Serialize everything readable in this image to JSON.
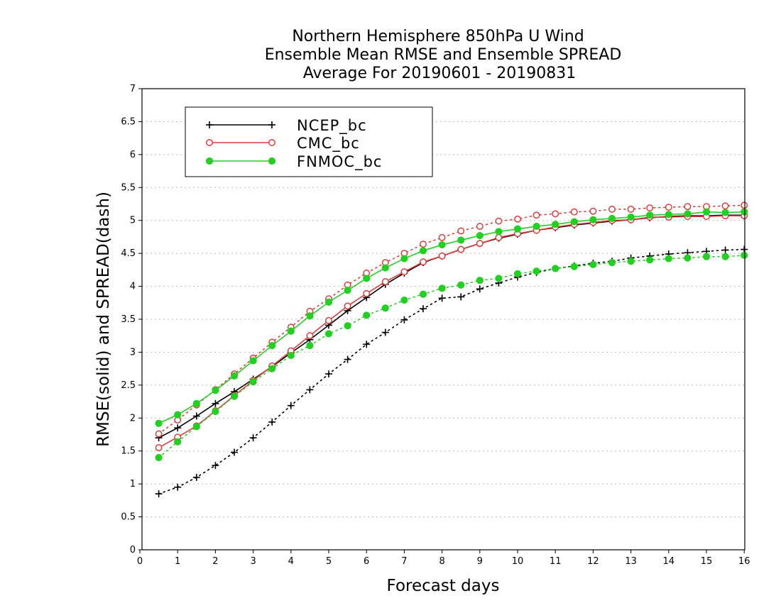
{
  "chart_data": {
    "type": "line",
    "title": [
      "Northern Hemisphere 850hPa U Wind",
      "Ensemble Mean RMSE and Ensemble SPREAD",
      "Average For 20190601 - 20190831"
    ],
    "xlabel": "Forecast days",
    "ylabel": "RMSE(solid) and SPREAD(dash)",
    "xlim": [
      0,
      16
    ],
    "ylim": [
      0,
      7
    ],
    "xticks": [
      "0",
      "1",
      "2",
      "3",
      "4",
      "5",
      "6",
      "7",
      "8",
      "9",
      "10",
      "11",
      "12",
      "13",
      "14",
      "15",
      "16"
    ],
    "yticks": [
      "0",
      "0.5",
      "1",
      "1.5",
      "2",
      "2.5",
      "3",
      "3.5",
      "4",
      "4.5",
      "5",
      "5.5",
      "6",
      "6.5",
      "7"
    ],
    "grid": true,
    "legend_position": "top-left",
    "x": [
      0.5,
      1,
      1.5,
      2,
      2.5,
      3,
      3.5,
      4,
      4.5,
      5,
      5.5,
      6,
      6.5,
      7,
      7.5,
      8,
      8.5,
      9,
      9.5,
      10,
      10.5,
      11,
      11.5,
      12,
      12.5,
      13,
      13.5,
      14,
      14.5,
      15,
      15.5,
      16
    ],
    "series": [
      {
        "name": "NCEP_bc",
        "color": "#000000",
        "marker": "plus",
        "rmse": [
          1.7,
          1.85,
          2.03,
          2.22,
          2.4,
          2.59,
          2.78,
          2.99,
          3.19,
          3.41,
          3.63,
          3.83,
          4.03,
          4.2,
          4.36,
          4.46,
          4.56,
          4.65,
          4.73,
          4.79,
          4.85,
          4.89,
          4.93,
          4.96,
          4.99,
          5.01,
          5.04,
          5.06,
          5.07,
          5.07,
          5.08,
          5.08
        ],
        "spread": [
          0.85,
          0.95,
          1.1,
          1.28,
          1.48,
          1.7,
          1.94,
          2.19,
          2.43,
          2.67,
          2.89,
          3.12,
          3.3,
          3.49,
          3.66,
          3.82,
          3.84,
          3.96,
          4.05,
          4.14,
          4.21,
          4.27,
          4.31,
          4.35,
          4.38,
          4.43,
          4.46,
          4.49,
          4.51,
          4.53,
          4.55,
          4.56
        ]
      },
      {
        "name": "CMC_bc",
        "color": "#e03c3c",
        "marker": "open-circle",
        "rmse": [
          1.55,
          1.71,
          1.88,
          2.11,
          2.34,
          2.57,
          2.79,
          3.02,
          3.25,
          3.48,
          3.7,
          3.89,
          4.07,
          4.22,
          4.37,
          4.46,
          4.56,
          4.65,
          4.74,
          4.8,
          4.85,
          4.9,
          4.94,
          4.97,
          5.0,
          5.01,
          5.05,
          5.05,
          5.06,
          5.06,
          5.07,
          5.07
        ],
        "spread": [
          1.76,
          1.97,
          2.2,
          2.43,
          2.67,
          2.91,
          3.15,
          3.38,
          3.62,
          3.81,
          4.02,
          4.2,
          4.36,
          4.5,
          4.64,
          4.74,
          4.84,
          4.91,
          4.99,
          5.02,
          5.08,
          5.1,
          5.13,
          5.14,
          5.17,
          5.17,
          5.19,
          5.2,
          5.21,
          5.21,
          5.22,
          5.23
        ]
      },
      {
        "name": "FNMOC_bc",
        "color": "#22d022",
        "marker": "filled-circle",
        "rmse": [
          1.92,
          2.05,
          2.22,
          2.42,
          2.64,
          2.87,
          3.1,
          3.32,
          3.55,
          3.76,
          3.94,
          4.12,
          4.28,
          4.42,
          4.54,
          4.63,
          4.7,
          4.77,
          4.83,
          4.87,
          4.91,
          4.94,
          4.98,
          5.01,
          5.03,
          5.05,
          5.08,
          5.09,
          5.1,
          5.13,
          5.12,
          5.13
        ],
        "spread": [
          1.4,
          1.64,
          1.87,
          2.1,
          2.33,
          2.55,
          2.75,
          2.95,
          3.1,
          3.28,
          3.4,
          3.56,
          3.67,
          3.79,
          3.88,
          3.97,
          4.02,
          4.09,
          4.12,
          4.19,
          4.23,
          4.27,
          4.3,
          4.33,
          4.36,
          4.38,
          4.4,
          4.42,
          4.43,
          4.45,
          4.45,
          4.47
        ]
      }
    ]
  }
}
